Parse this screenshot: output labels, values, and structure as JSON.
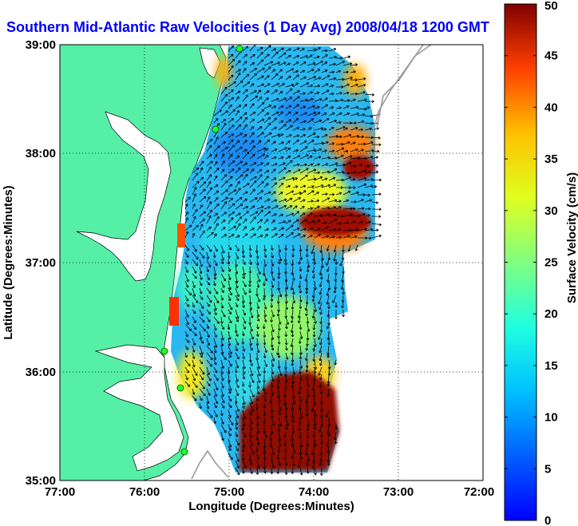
{
  "chart_data": {
    "type": "heatmap",
    "title": "Southern Mid-Atlantic Raw Velocities (1 Day Avg) 2008/04/18 1200 GMT",
    "xlabel": "Longitude (Degrees:Minutes)",
    "ylabel": "Latitude (Degrees:Minutes)",
    "x_ticks": [
      "77:00",
      "76:00",
      "75:00",
      "74:00",
      "73:00",
      "72:00"
    ],
    "y_ticks": [
      "39:00",
      "38:00",
      "37:00",
      "36:00",
      "35:00"
    ],
    "xlim": [
      -77,
      -72
    ],
    "ylim": [
      35,
      39
    ],
    "grid": true,
    "colorbar": {
      "label": "Surface Velocity (cm/s)",
      "range": [
        0,
        50
      ],
      "ticks": [
        "0",
        "5",
        "10",
        "15",
        "20",
        "25",
        "30",
        "35",
        "40",
        "45",
        "50"
      ],
      "colormap": "jet"
    },
    "hotspots": [
      {
        "region": "north of 37:00, near 73:40 W",
        "speed_cm_s": 50
      },
      {
        "region": "near 38:00, 73:20 W",
        "speed_cm_s": 48
      },
      {
        "region": "south-east, 35:00-35:50 N, 74:20 W",
        "speed_cm_s": 50
      }
    ],
    "station_markers": 5
  },
  "colors": {
    "land": "#55f0a6",
    "title": "#0000ff",
    "background": "#ffffff"
  }
}
